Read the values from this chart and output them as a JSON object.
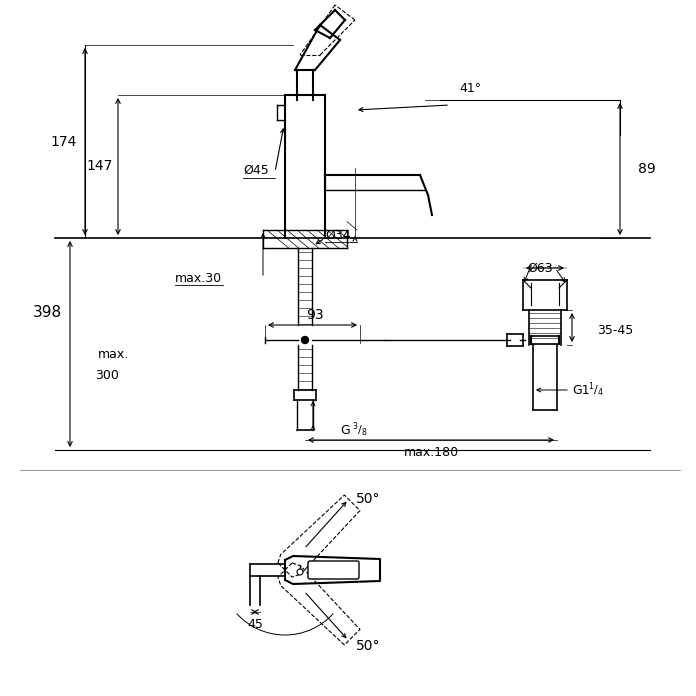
{
  "bg_color": "#ffffff",
  "line_color": "#000000",
  "text_color": "#000000",
  "fig_width": 6.96,
  "fig_height": 6.96,
  "dpi": 100,
  "annotations": {
    "dim_174": "174",
    "dim_147": "147",
    "dim_398": "398",
    "dim_max300_a": "max.",
    "dim_max300_b": "300",
    "dim_max30": "max.30",
    "dim_45_diam": "Ø45",
    "dim_34_diam": "Ø34",
    "dim_63_diam": "Ø63",
    "dim_89": "89",
    "dim_41": "41°",
    "dim_93": "93",
    "dim_3545": "35-45",
    "dim_g38_sup": "3",
    "dim_g38_sub": "8",
    "dim_g114": "G1",
    "dim_max180": "max.180",
    "dim_50top": "50°",
    "dim_50bot": "50°",
    "dim_45bot": "45"
  }
}
